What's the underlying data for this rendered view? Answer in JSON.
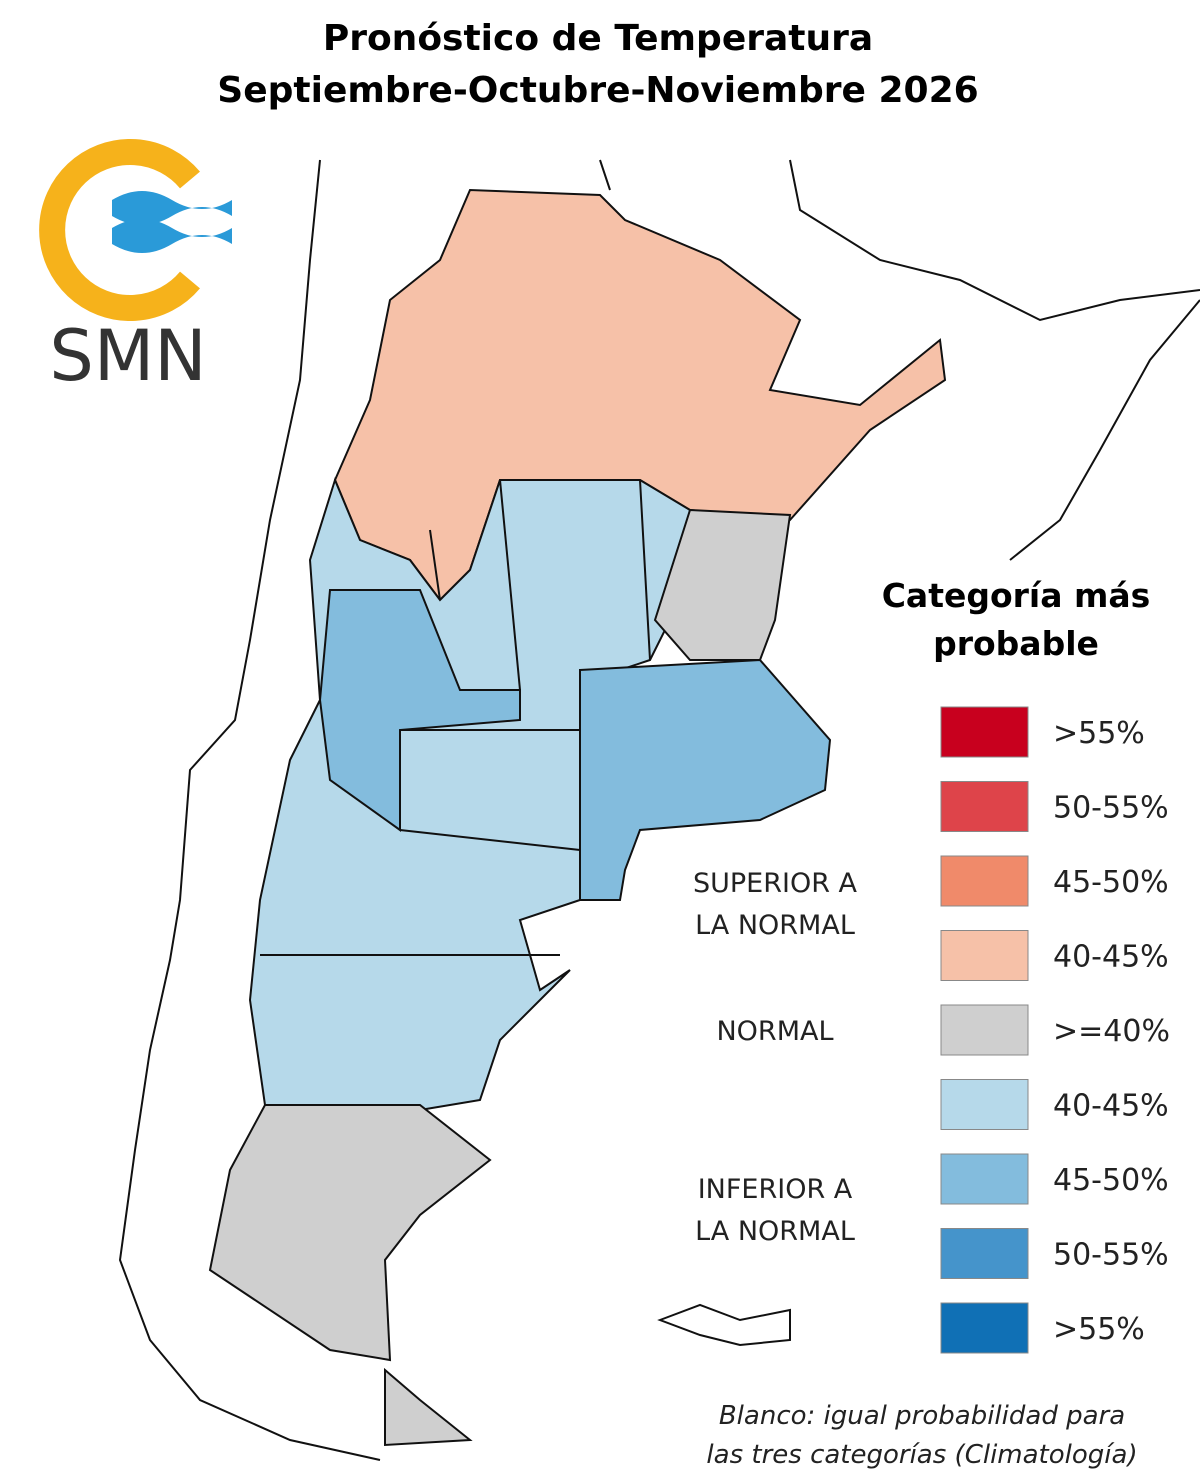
{
  "title": [
    "Pronóstico de Temperatura",
    "Septiembre-Octubre-Noviembre 2026"
  ],
  "logo": {
    "text": "SMN"
  },
  "legend": {
    "title": [
      "Categoría más",
      "probable"
    ],
    "items": [
      {
        "label": ">55%",
        "color": "#c8001e"
      },
      {
        "label": "50-55%",
        "color": "#de444a"
      },
      {
        "label": "45-50%",
        "color": "#f08a6a"
      },
      {
        "label": "40-45%",
        "color": "#f6c1a8"
      },
      {
        "label": ">=40%",
        "color": "#cfcfcf"
      },
      {
        "label": "40-45%",
        "color": "#b6d9ea"
      },
      {
        "label": "45-50%",
        "color": "#83bcdd"
      },
      {
        "label": "50-55%",
        "color": "#4594cb"
      },
      {
        "label": ">55%",
        "color": "#1070b5"
      }
    ],
    "groups": [
      [
        "SUPERIOR A",
        "LA NORMAL"
      ],
      [
        "NORMAL"
      ],
      [
        "INFERIOR A",
        "LA NORMAL"
      ]
    ]
  },
  "note": [
    "Blanco: igual probabilidad para",
    "las tres categorías (Climatología)"
  ]
}
